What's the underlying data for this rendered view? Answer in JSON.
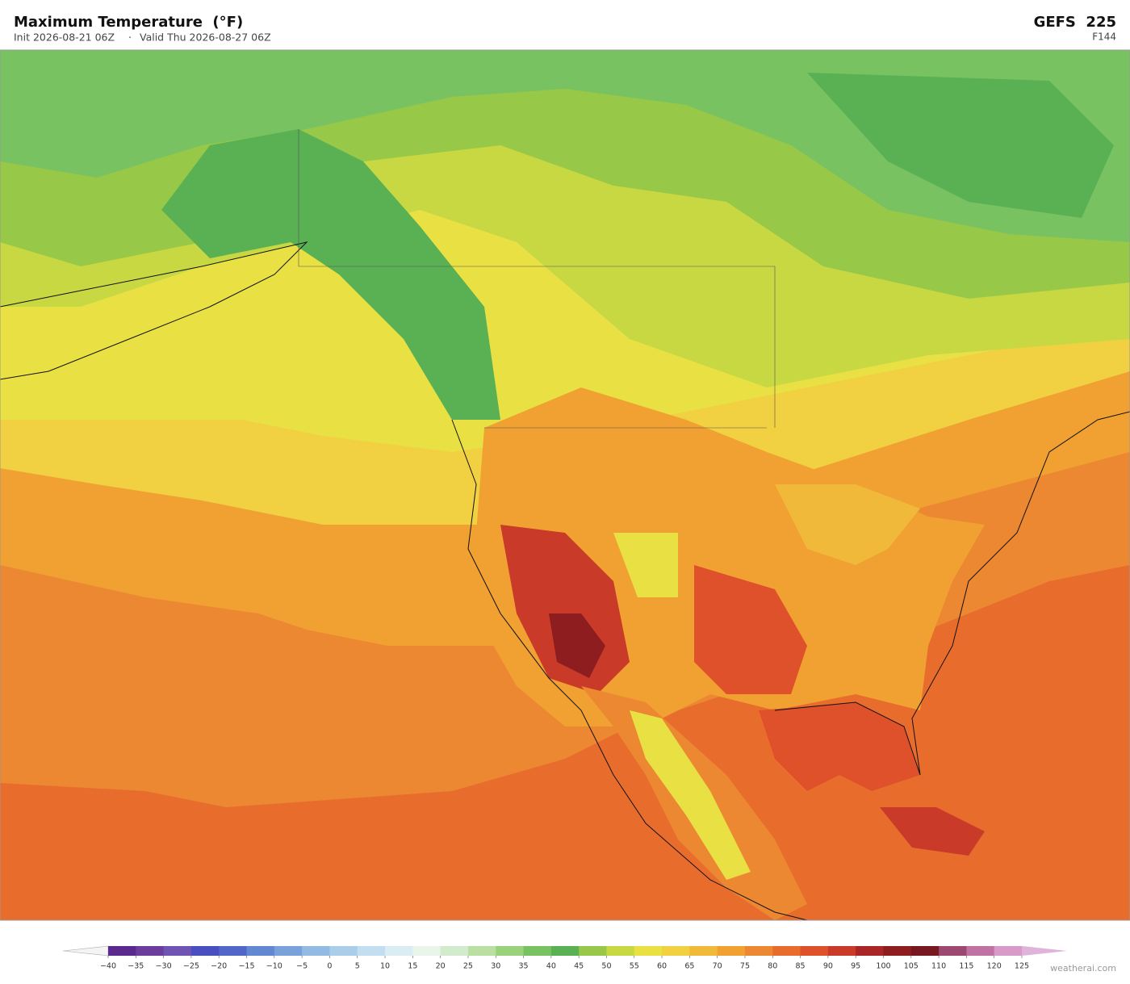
{
  "header": {
    "title": "Maximum Temperature  (°F)",
    "init": "Init 2026-08-21 06Z",
    "separator": "·",
    "valid": "Valid Thu 2026-08-27 06Z",
    "model": "GEFS  225",
    "forecast_hour": "F144"
  },
  "colorbar": {
    "ticks": [
      {
        "value": -40,
        "label": "−40"
      },
      {
        "value": -35,
        "label": "−35"
      },
      {
        "value": -30,
        "label": "−30"
      },
      {
        "value": -25,
        "label": "−25"
      },
      {
        "value": -20,
        "label": "−20"
      },
      {
        "value": -15,
        "label": "−15"
      },
      {
        "value": -10,
        "label": "−10"
      },
      {
        "value": -5,
        "label": "−5"
      },
      0,
      5,
      10,
      15,
      20,
      25,
      30,
      35,
      40,
      45,
      50,
      55,
      60,
      65,
      70,
      75,
      80,
      85,
      90,
      95,
      100,
      105,
      110,
      115,
      120,
      125
    ],
    "colors": [
      "#5b2a8e",
      "#6b3e9e",
      "#6f54b4",
      "#4a4fc0",
      "#5066c8",
      "#6288d2",
      "#7aa2da",
      "#92bae2",
      "#aacee9",
      "#c2def0",
      "#d9edf3",
      "#e9f5ea",
      "#d3ebcd",
      "#b9e0a2",
      "#9ad27b",
      "#79c262",
      "#59b153",
      "#98c84a",
      "#c8d843",
      "#e9e143",
      "#f1d042",
      "#f1b93a",
      "#f0a132",
      "#ec8832",
      "#e86d2d",
      "#df512a",
      "#c93a29",
      "#a92626",
      "#8d1d1e",
      "#771820",
      "#9c4870",
      "#c072a2",
      "#d89ac9",
      "#e0b4da"
    ],
    "under_color": "#f4f4f4"
  },
  "watermark": "weatherai.com"
}
